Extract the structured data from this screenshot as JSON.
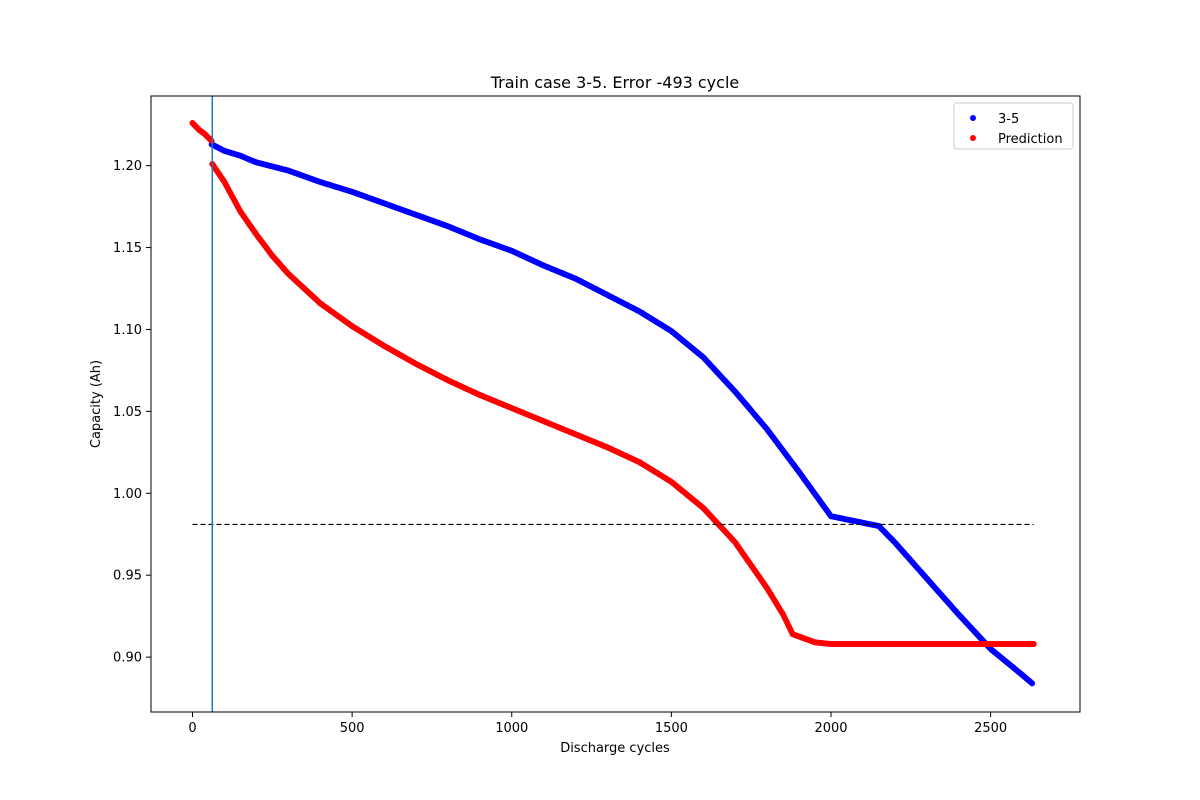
{
  "chart_data": {
    "type": "scatter",
    "title": "Train case 3-5. Error -493 cycle",
    "xlabel": "Discharge cycles",
    "ylabel": "Capacity (Ah)",
    "xlim": [
      -130,
      2780
    ],
    "ylim": [
      0.8665,
      1.2425
    ],
    "xticks": [
      0,
      500,
      1000,
      1500,
      2000,
      2500
    ],
    "yticks": [
      0.9,
      0.95,
      1.0,
      1.05,
      1.1,
      1.15,
      1.2
    ],
    "grid": false,
    "legend_position": "top-right",
    "series": [
      {
        "name": "3-5",
        "color": "#0000ff",
        "points": [
          [
            60,
            1.213
          ],
          [
            100,
            1.209
          ],
          [
            150,
            1.206
          ],
          [
            200,
            1.202
          ],
          [
            300,
            1.197
          ],
          [
            400,
            1.19
          ],
          [
            500,
            1.184
          ],
          [
            600,
            1.177
          ],
          [
            700,
            1.17
          ],
          [
            800,
            1.163
          ],
          [
            900,
            1.155
          ],
          [
            1000,
            1.148
          ],
          [
            1100,
            1.139
          ],
          [
            1200,
            1.131
          ],
          [
            1300,
            1.121
          ],
          [
            1400,
            1.111
          ],
          [
            1500,
            1.099
          ],
          [
            1600,
            1.083
          ],
          [
            1700,
            1.062
          ],
          [
            1800,
            1.039
          ],
          [
            1900,
            1.013
          ],
          [
            2000,
            0.986
          ],
          [
            2100,
            0.957
          ],
          [
            2150,
            0.981
          ],
          [
            2200,
            0.97
          ],
          [
            2300,
            0.948
          ],
          [
            2400,
            0.926
          ],
          [
            2500,
            0.905
          ],
          [
            2600,
            0.889
          ],
          [
            2630,
            0.884
          ]
        ]
      },
      {
        "name": "Prediction",
        "color": "#ff0000",
        "points": [
          [
            0,
            1.226
          ],
          [
            20,
            1.222
          ],
          [
            40,
            1.219
          ],
          [
            60,
            1.215
          ],
          [
            62,
            1.201
          ],
          [
            100,
            1.19
          ],
          [
            150,
            1.172
          ],
          [
            200,
            1.158
          ],
          [
            250,
            1.145
          ],
          [
            300,
            1.134
          ],
          [
            400,
            1.116
          ],
          [
            500,
            1.102
          ],
          [
            600,
            1.09
          ],
          [
            700,
            1.079
          ],
          [
            800,
            1.069
          ],
          [
            900,
            1.06
          ],
          [
            1000,
            1.052
          ],
          [
            1100,
            1.044
          ],
          [
            1200,
            1.036
          ],
          [
            1300,
            1.028
          ],
          [
            1400,
            1.019
          ],
          [
            1500,
            1.007
          ],
          [
            1600,
            0.991
          ],
          [
            1700,
            0.97
          ],
          [
            1800,
            0.942
          ],
          [
            1850,
            0.926
          ],
          [
            1880,
            0.914
          ],
          [
            1950,
            0.909
          ],
          [
            2000,
            0.908
          ],
          [
            2100,
            0.908
          ],
          [
            2200,
            0.908
          ],
          [
            2300,
            0.908
          ],
          [
            2400,
            0.908
          ],
          [
            2500,
            0.908
          ],
          [
            2600,
            0.908
          ],
          [
            2635,
            0.908
          ]
        ]
      }
    ],
    "annotations": {
      "vertical_line_x": 62,
      "vertical_line_color": "#1f77b4",
      "threshold_y": 0.981,
      "threshold_x_range": [
        0,
        2635
      ],
      "threshold_color": "#000000"
    }
  }
}
